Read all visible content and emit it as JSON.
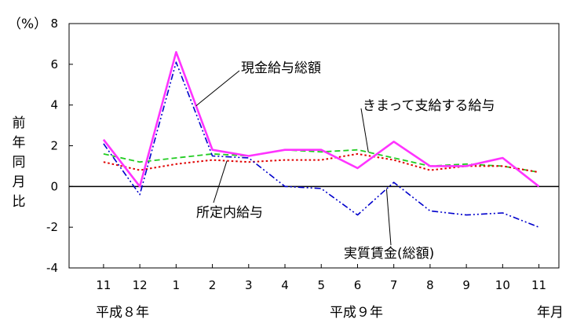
{
  "chart_data": {
    "type": "line",
    "y_unit": "（%）",
    "ylabel": "前年同月比",
    "xlabel": "年月",
    "ylim": [
      -4,
      8
    ],
    "y_ticks": [
      "8",
      "6",
      "4",
      "2",
      "0",
      "-2",
      "-4"
    ],
    "y_tick_values": [
      8,
      6,
      4,
      2,
      0,
      -2,
      -4
    ],
    "categories": [
      "11",
      "12",
      "1",
      "2",
      "3",
      "4",
      "5",
      "6",
      "7",
      "8",
      "9",
      "10",
      "11"
    ],
    "year_labels": [
      "平成８年",
      "平成９年"
    ],
    "grid": false,
    "series": [
      {
        "name": "現金給与総額",
        "color": "#ff33ff",
        "style": "solid",
        "values": [
          2.3,
          0.0,
          6.6,
          1.8,
          1.5,
          1.8,
          1.8,
          0.9,
          2.2,
          1.0,
          1.0,
          1.4,
          0.0
        ]
      },
      {
        "name": "きまって支給する給与",
        "color": "#22cc22",
        "style": "dashed",
        "values": [
          1.6,
          1.2,
          1.4,
          1.6,
          1.5,
          1.8,
          1.7,
          1.8,
          1.4,
          1.0,
          1.1,
          1.0,
          0.7
        ]
      },
      {
        "name": "所定内給与",
        "color": "#e00000",
        "style": "dotted",
        "values": [
          1.2,
          0.8,
          1.1,
          1.3,
          1.2,
          1.3,
          1.3,
          1.6,
          1.3,
          0.8,
          1.0,
          1.0,
          0.7
        ]
      },
      {
        "name": "実質賃金(総額)",
        "color": "#0000cc",
        "style": "dashdot",
        "values": [
          2.1,
          -0.4,
          6.1,
          1.5,
          1.4,
          0.0,
          -0.1,
          -1.4,
          0.2,
          -1.2,
          -1.4,
          -1.3,
          -2.0
        ]
      }
    ]
  }
}
